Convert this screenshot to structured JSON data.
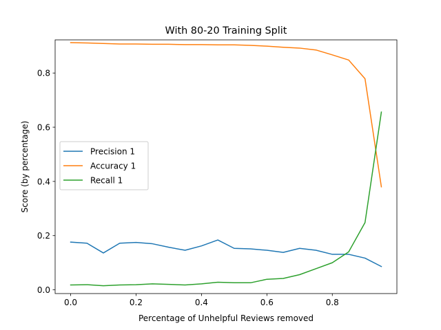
{
  "chart_data": {
    "type": "line",
    "title": "With 80-20 Training Split",
    "xlabel": "Percentage of Unhelpful Reviews removed",
    "ylabel": "Score (by percentage)",
    "xlim": [
      -0.0475,
      0.9975
    ],
    "ylim": [
      -0.0138,
      0.9223
    ],
    "xticks": [
      0.0,
      0.2,
      0.4,
      0.6,
      0.8
    ],
    "xtick_labels": [
      "0.0",
      "0.2",
      "0.4",
      "0.6",
      "0.8"
    ],
    "yticks": [
      0.0,
      0.2,
      0.4,
      0.6,
      0.8
    ],
    "ytick_labels": [
      "0.0",
      "0.2",
      "0.4",
      "0.6",
      "0.8"
    ],
    "grid": false,
    "legend_position": "center-left",
    "x": [
      0.0,
      0.05,
      0.1,
      0.15,
      0.2,
      0.25,
      0.3,
      0.35,
      0.4,
      0.45,
      0.5,
      0.55,
      0.6,
      0.65,
      0.7,
      0.75,
      0.8,
      0.85,
      0.9,
      0.95
    ],
    "series": [
      {
        "name": "Precision 1",
        "color": "#1f77b4",
        "values": [
          0.176,
          0.172,
          0.136,
          0.172,
          0.175,
          0.17,
          0.157,
          0.146,
          0.162,
          0.184,
          0.153,
          0.151,
          0.146,
          0.138,
          0.153,
          0.146,
          0.131,
          0.131,
          0.117,
          0.086
        ]
      },
      {
        "name": "Accuracy 1",
        "color": "#ff7f0e",
        "values": [
          0.912,
          0.911,
          0.909,
          0.907,
          0.907,
          0.906,
          0.906,
          0.905,
          0.905,
          0.904,
          0.904,
          0.902,
          0.899,
          0.895,
          0.892,
          0.885,
          0.867,
          0.848,
          0.779,
          0.38
        ]
      },
      {
        "name": "Recall 1",
        "color": "#2ca02c",
        "values": [
          0.018,
          0.019,
          0.015,
          0.018,
          0.019,
          0.022,
          0.02,
          0.018,
          0.022,
          0.028,
          0.026,
          0.026,
          0.039,
          0.042,
          0.056,
          0.078,
          0.1,
          0.14,
          0.248,
          0.656
        ]
      }
    ]
  }
}
